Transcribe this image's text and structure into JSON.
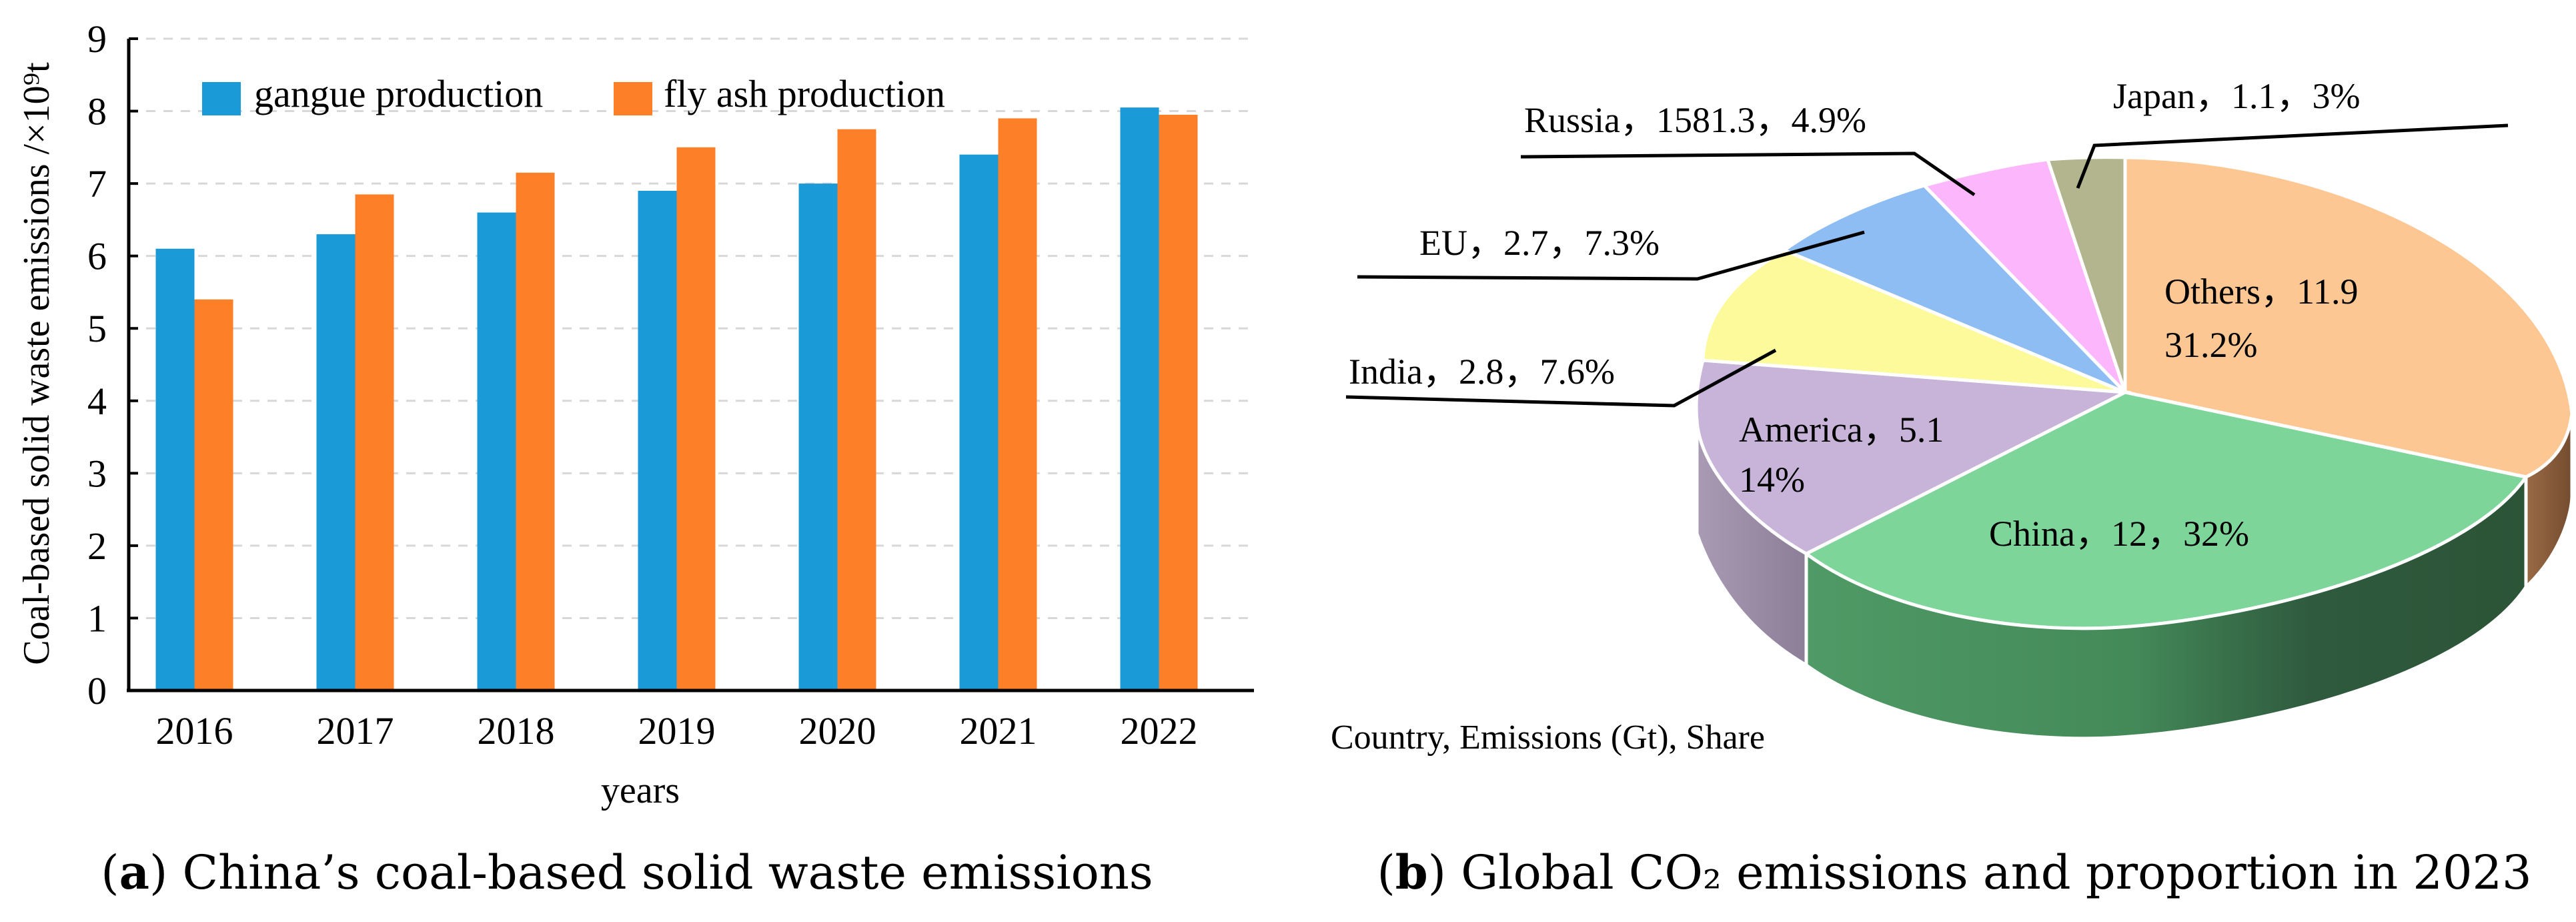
{
  "chart_data": [
    {
      "type": "bar",
      "panel_label": "a",
      "caption": "China’s coal-based solid waste emissions",
      "xlabel": "years",
      "ylabel": "Coal-based solid waste emissions /×10⁹t",
      "categories": [
        "2016",
        "2017",
        "2018",
        "2019",
        "2020",
        "2021",
        "2022"
      ],
      "series": [
        {
          "name": "gangue production",
          "color": "#1a9ad6",
          "values": [
            6.1,
            6.3,
            6.6,
            6.9,
            7.0,
            7.4,
            8.05
          ]
        },
        {
          "name": "fly ash production",
          "color": "#fd7f28",
          "values": [
            5.4,
            6.85,
            7.15,
            7.5,
            7.75,
            7.9,
            7.95
          ]
        }
      ],
      "ylim": [
        0,
        9
      ],
      "yticks": [
        "0",
        "1",
        "2",
        "3",
        "4",
        "5",
        "6",
        "7",
        "8",
        "9"
      ],
      "grid": true,
      "legend": "top-left"
    },
    {
      "type": "pie",
      "style": "3d",
      "panel_label": "b",
      "caption": "Global CO₂ emissions and proportion in 2023",
      "note": "Country, Emissions (Gt), Share",
      "slices": [
        {
          "name": "Others",
          "value": 11.9,
          "share": 31.2,
          "label": "Others，11.9",
          "label2": "31.2%",
          "color": "#fdc793"
        },
        {
          "name": "China",
          "value": 12,
          "share": 32,
          "label": "China，12，32%",
          "color": "#7dd59a"
        },
        {
          "name": "America",
          "value": 5.1,
          "share": 14,
          "label": "America，5.1",
          "label2": "14%",
          "color": "#c8b3d9"
        },
        {
          "name": "India",
          "value": 2.8,
          "share": 7.6,
          "label": "India，2.8，7.6%",
          "color": "#fcfa9a"
        },
        {
          "name": "EU",
          "value": 2.7,
          "share": 7.3,
          "label": "EU，2.7，7.3%",
          "color": "#8ebdf3"
        },
        {
          "name": "Russia",
          "value": 1581.3,
          "share": 4.9,
          "label": "Russia，1581.3，4.9%",
          "color": "#fcb6fb"
        },
        {
          "name": "Japan",
          "value": 1.1,
          "share": 3,
          "label": "Japan，1.1，3%",
          "color": "#b2b58e"
        }
      ]
    }
  ]
}
